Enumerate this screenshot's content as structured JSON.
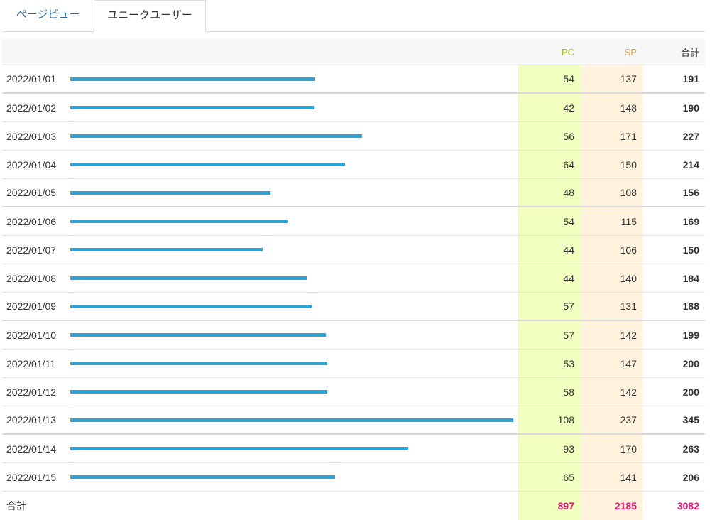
{
  "tabs": [
    {
      "label": "ページビュー",
      "active": false
    },
    {
      "label": "ユニークユーザー",
      "active": true
    }
  ],
  "table": {
    "headers": {
      "pc": "PC",
      "sp": "SP",
      "total": "合計"
    },
    "max_total": 345,
    "rows": [
      {
        "date": "2022/01/01",
        "pc": "54",
        "sp": "137",
        "total": "191"
      },
      {
        "date": "2022/01/02",
        "pc": "42",
        "sp": "148",
        "total": "190"
      },
      {
        "date": "2022/01/03",
        "pc": "56",
        "sp": "171",
        "total": "227"
      },
      {
        "date": "2022/01/04",
        "pc": "64",
        "sp": "150",
        "total": "214"
      },
      {
        "date": "2022/01/05",
        "pc": "48",
        "sp": "108",
        "total": "156"
      },
      {
        "date": "2022/01/06",
        "pc": "54",
        "sp": "115",
        "total": "169"
      },
      {
        "date": "2022/01/07",
        "pc": "44",
        "sp": "106",
        "total": "150"
      },
      {
        "date": "2022/01/08",
        "pc": "44",
        "sp": "140",
        "total": "184"
      },
      {
        "date": "2022/01/09",
        "pc": "57",
        "sp": "131",
        "total": "188"
      },
      {
        "date": "2022/01/10",
        "pc": "57",
        "sp": "142",
        "total": "199"
      },
      {
        "date": "2022/01/11",
        "pc": "53",
        "sp": "147",
        "total": "200"
      },
      {
        "date": "2022/01/12",
        "pc": "58",
        "sp": "142",
        "total": "200"
      },
      {
        "date": "2022/01/13",
        "pc": "108",
        "sp": "237",
        "total": "345"
      },
      {
        "date": "2022/01/14",
        "pc": "93",
        "sp": "170",
        "total": "263"
      },
      {
        "date": "2022/01/15",
        "pc": "65",
        "sp": "141",
        "total": "206"
      }
    ],
    "footer": {
      "label": "合計",
      "pc": "897",
      "sp": "2185",
      "total": "3082"
    }
  },
  "colors": {
    "bar": "#2ea3d4",
    "pc_bg": "#f0ffc0",
    "sp_bg": "#fff3dd",
    "footer_value": "#e4147a"
  }
}
